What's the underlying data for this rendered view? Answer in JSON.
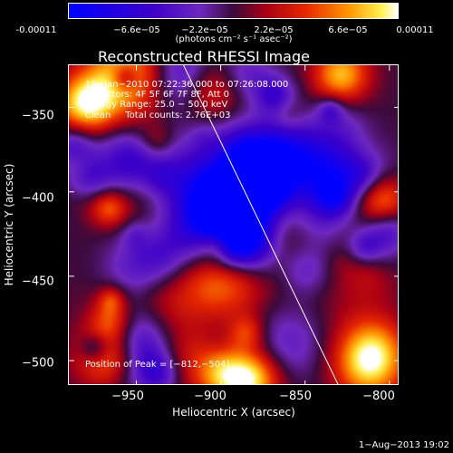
{
  "colorbar": {
    "ticks": [
      "-0.00011",
      "−6.6e−05",
      "−2.2e−05",
      "2.2e−05",
      "6.6e−05",
      "0.00011"
    ],
    "units": "(photons cm⁻² s⁻¹ asec⁻²)"
  },
  "title": "Reconstructed RHESSI Image",
  "annotations": {
    "time": "19−Jan−2010 07:22:36.000 to 07:26:08.000",
    "detectors": "Detectors: 4F 5F 6F 7F 8F, Att 0",
    "energy": "Energy Range: 25.0 − 50.0 keV",
    "clean": "Clean     Total counts: 2.76E+03",
    "peak": "Position of Peak = [−812,−504]"
  },
  "footer": "1−Aug−2013 19:02",
  "chart_data": {
    "type": "heatmap",
    "title": "Reconstructed RHESSI Image",
    "xlabel": "Heliocentric X (arcsec)",
    "ylabel": "Heliocentric Y (arcsec)",
    "xlim": [
      -990,
      -794
    ],
    "ylim": [
      -515,
      -325
    ],
    "x_ticks": [
      -950,
      -900,
      -850,
      -800
    ],
    "y_ticks": [
      -350,
      -400,
      -450,
      -500
    ],
    "x_tick_labels": [
      "−950",
      "−900",
      "−850",
      "−800"
    ],
    "y_tick_labels": [
      "−350",
      "−400",
      "−450",
      "−500"
    ],
    "colorbar_range": [
      -0.00011,
      0.00011
    ],
    "peak_position": [
      -812,
      -504
    ],
    "limb_line": [
      [
        -922,
        -325
      ],
      [
        -830,
        -515
      ]
    ]
  }
}
